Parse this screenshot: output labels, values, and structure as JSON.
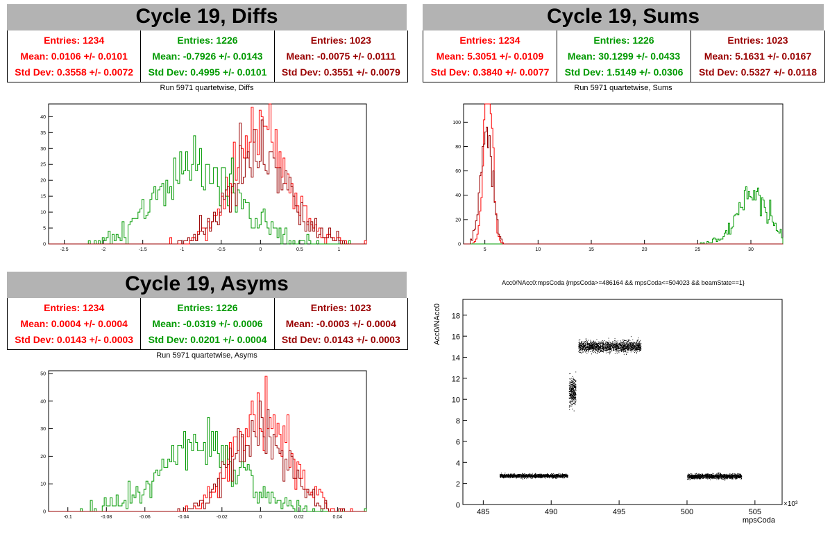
{
  "panels": {
    "diffs": {
      "title": "Cycle 19, Diffs",
      "subtitle": "Run 5971 quartetwise, Diffs",
      "stats": [
        {
          "entries": "Entries: 1234",
          "mean": "Mean: 0.0106 +/- 0.0101",
          "std": "Std Dev: 0.3558 +/- 0.0072",
          "color": "#ff0000"
        },
        {
          "entries": "Entries: 1226",
          "mean": "Mean: -0.7926 +/- 0.0143",
          "std": "Std Dev: 0.4995 +/- 0.0101",
          "color": "#009900"
        },
        {
          "entries": "Entries: 1023",
          "mean": "Mean: -0.0075 +/- 0.0111",
          "std": "Std Dev: 0.3551 +/- 0.0079",
          "color": "#990000"
        }
      ]
    },
    "sums": {
      "title": "Cycle 19, Sums",
      "subtitle": "Run 5971 quartetwise, Sums",
      "stats": [
        {
          "entries": "Entries: 1234",
          "mean": "Mean: 5.3051 +/- 0.0109",
          "std": "Std Dev: 0.3840 +/- 0.0077",
          "color": "#ff0000"
        },
        {
          "entries": "Entries: 1226",
          "mean": "Mean: 30.1299 +/- 0.0433",
          "std": "Std Dev: 1.5149 +/- 0.0306",
          "color": "#009900"
        },
        {
          "entries": "Entries: 1023",
          "mean": "Mean: 5.1631 +/- 0.0167",
          "std": "Std Dev: 0.5327 +/- 0.0118",
          "color": "#990000"
        }
      ]
    },
    "asyms": {
      "title": "Cycle 19, Asyms",
      "subtitle": "Run 5971 quartetwise, Asyms",
      "stats": [
        {
          "entries": "Entries: 1234",
          "mean": "Mean: 0.0004 +/- 0.0004",
          "std": "Std Dev: 0.0143 +/- 0.0003",
          "color": "#ff0000"
        },
        {
          "entries": "Entries: 1226",
          "mean": "Mean: -0.0319 +/- 0.0006",
          "std": "Std Dev: 0.0201 +/- 0.0004",
          "color": "#009900"
        },
        {
          "entries": "Entries: 1023",
          "mean": "Mean: -0.0003 +/- 0.0004",
          "std": "Std Dev: 0.0143 +/- 0.0003",
          "color": "#990000"
        }
      ]
    },
    "scatter": {
      "title": "Acc0/NAcc0:mpsCoda {mpsCoda>=486164 && mpsCoda<=504023 && beamState==1}"
    }
  },
  "chart_data": [
    {
      "type": "histogram",
      "name": "diffs",
      "xlim": [
        -2.7,
        1.35
      ],
      "ylim": [
        0,
        44
      ],
      "xticks": [
        -2.5,
        -2,
        -1.5,
        -1,
        -0.5,
        0,
        0.5,
        1
      ],
      "yticks": [
        0,
        5,
        10,
        15,
        20,
        25,
        30,
        35,
        40
      ],
      "series": [
        {
          "color": "#ff0000",
          "mean": 0.0106,
          "std": 0.3558,
          "entries": 1234
        },
        {
          "color": "#009900",
          "mean": -0.7926,
          "std": 0.4995,
          "entries": 1226
        },
        {
          "color": "#990000",
          "mean": -0.0075,
          "std": 0.3551,
          "entries": 1023
        }
      ]
    },
    {
      "type": "histogram",
      "name": "sums",
      "xlim": [
        3,
        33
      ],
      "ylim": [
        0,
        115
      ],
      "xticks": [
        5,
        10,
        15,
        20,
        25,
        30
      ],
      "yticks": [
        0,
        20,
        40,
        60,
        80,
        100
      ],
      "series": [
        {
          "color": "#ff0000",
          "mean": 5.3051,
          "std": 0.384,
          "entries": 1234
        },
        {
          "color": "#009900",
          "mean": 30.1299,
          "std": 1.5149,
          "entries": 1226
        },
        {
          "color": "#990000",
          "mean": 5.1631,
          "std": 0.5327,
          "entries": 1023
        }
      ]
    },
    {
      "type": "histogram",
      "name": "asyms",
      "xlim": [
        -0.11,
        0.055
      ],
      "ylim": [
        0,
        51
      ],
      "xticks": [
        -0.1,
        -0.08,
        -0.06,
        -0.04,
        -0.02,
        0,
        0.02,
        0.04
      ],
      "yticks": [
        0,
        10,
        20,
        30,
        40,
        50
      ],
      "series": [
        {
          "color": "#ff0000",
          "mean": 0.0004,
          "std": 0.0143,
          "entries": 1234
        },
        {
          "color": "#009900",
          "mean": -0.0319,
          "std": 0.0201,
          "entries": 1226
        },
        {
          "color": "#990000",
          "mean": -0.0003,
          "std": 0.0143,
          "entries": 1023
        }
      ]
    },
    {
      "type": "scatter",
      "name": "scatter",
      "xlabel": "mpsCoda",
      "ylabel": "Acc0/NAcc0",
      "xexp": "×10³",
      "xlim": [
        483.5,
        507
      ],
      "ylim": [
        0,
        19.5
      ],
      "xticks": [
        485,
        490,
        495,
        500,
        505
      ],
      "yticks": [
        0,
        2,
        4,
        6,
        8,
        10,
        12,
        14,
        16,
        18
      ],
      "clusters": [
        {
          "x": [
            486.2,
            491.2
          ],
          "y": [
            2.6,
            2.9
          ]
        },
        {
          "x": [
            491.3,
            491.8
          ],
          "y": [
            9.5,
            12.0
          ]
        },
        {
          "x": [
            492.0,
            496.6
          ],
          "y": [
            14.6,
            15.5
          ]
        },
        {
          "x": [
            500.0,
            504.0
          ],
          "y": [
            2.5,
            2.9
          ]
        }
      ]
    }
  ]
}
